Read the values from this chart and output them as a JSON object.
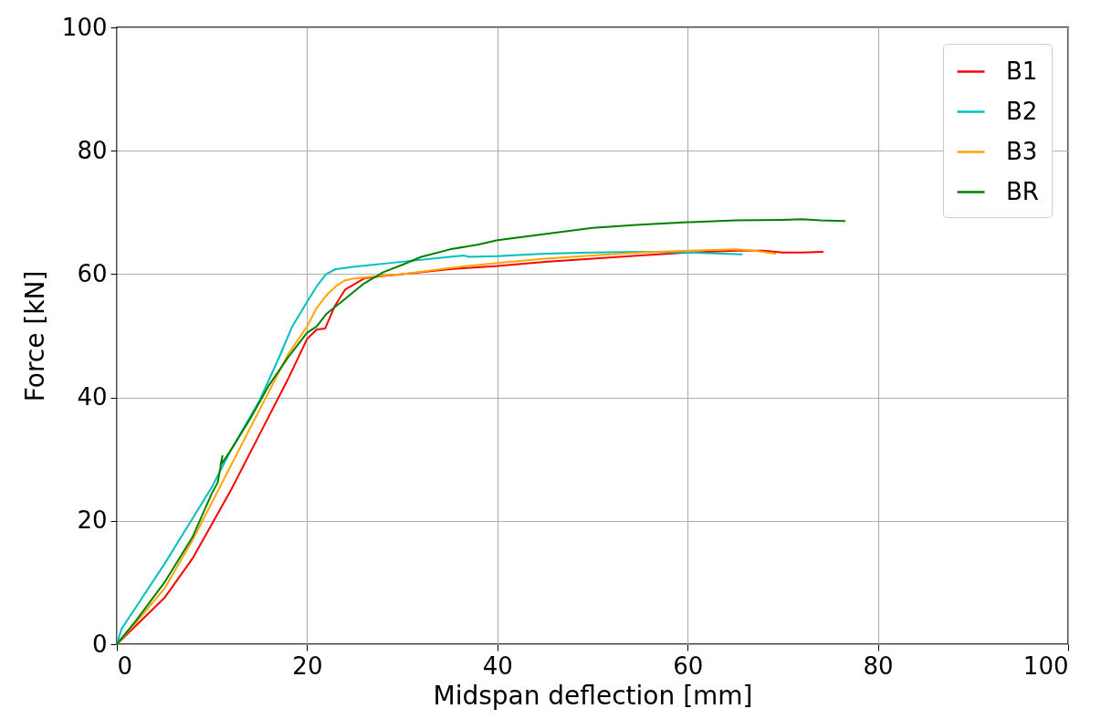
{
  "chart_data": {
    "type": "line",
    "xlabel": "Midspan deflection [mm]",
    "ylabel": "Force [kN]",
    "xlim": [
      0,
      100
    ],
    "ylim": [
      0,
      100
    ],
    "xticks": [
      0,
      20,
      40,
      60,
      80,
      100
    ],
    "yticks": [
      0,
      20,
      40,
      60,
      80,
      100
    ],
    "grid": true,
    "legend": "top right",
    "line_style": "solid",
    "marker": "none",
    "series": [
      {
        "name": "B1",
        "color": "#ff0000",
        "x": [
          0,
          2,
          5,
          8,
          10,
          12,
          15,
          18,
          20,
          21,
          21.9,
          22.9,
          24,
          26,
          28,
          30,
          35,
          40,
          45,
          50,
          55,
          60,
          65,
          68,
          70,
          72,
          74.2
        ],
        "values": [
          0,
          3,
          7.5,
          14,
          19.5,
          25,
          34,
          43,
          49.5,
          51,
          51.2,
          54.8,
          57.5,
          59.3,
          59.7,
          60,
          60.8,
          61.3,
          62,
          62.5,
          63,
          63.5,
          63.8,
          63.8,
          63.5,
          63.5,
          63.6
        ]
      },
      {
        "name": "B2",
        "color": "#00bfbf",
        "x": [
          0,
          0.5,
          2,
          5,
          8,
          10,
          12,
          15,
          17.5,
          17.1,
          18.4,
          20,
          21,
          22,
          23,
          25,
          30,
          35,
          36.5,
          37,
          40,
          45,
          50,
          55,
          60,
          65.7
        ],
        "values": [
          0,
          2.5,
          6,
          13,
          20.5,
          25.5,
          31.5,
          39.5,
          48,
          46.7,
          51.4,
          55.5,
          58,
          60,
          60.8,
          61.2,
          62,
          62.8,
          63,
          62.8,
          62.9,
          63.3,
          63.5,
          63.6,
          63.5,
          63.2
        ]
      },
      {
        "name": "B3",
        "color": "#ffa500",
        "x": [
          0,
          2,
          5,
          8,
          10,
          12,
          14,
          16,
          18,
          20,
          21,
          22,
          23,
          24,
          25,
          27,
          30,
          35,
          40,
          45,
          50,
          55,
          60,
          65,
          67,
          69.2
        ],
        "values": [
          0,
          3.5,
          9,
          17,
          23,
          29,
          35,
          41,
          47,
          51.5,
          54.5,
          56.5,
          58,
          59,
          59.3,
          59.6,
          60,
          61,
          61.8,
          62.5,
          63,
          63.5,
          63.8,
          64,
          63.8,
          63.3
        ]
      },
      {
        "name": "BR",
        "color": "#008000",
        "x": [
          0,
          2,
          5,
          8,
          10,
          10.6,
          11.1,
          10.9,
          12,
          14,
          16,
          18,
          20,
          21,
          22,
          24,
          26,
          28,
          30,
          32,
          35,
          38,
          40,
          45,
          50,
          55,
          60,
          65,
          70,
          72,
          74,
          76.5
        ],
        "values": [
          0,
          3.8,
          10,
          17.5,
          24.5,
          26.2,
          30.5,
          29,
          31.5,
          36.5,
          42,
          46.5,
          50.5,
          51.5,
          53.5,
          56,
          58.5,
          60.3,
          61.5,
          62.8,
          64,
          64.8,
          65.5,
          66.5,
          67.5,
          68,
          68.4,
          68.7,
          68.8,
          68.9,
          68.7,
          68.6
        ]
      }
    ]
  }
}
